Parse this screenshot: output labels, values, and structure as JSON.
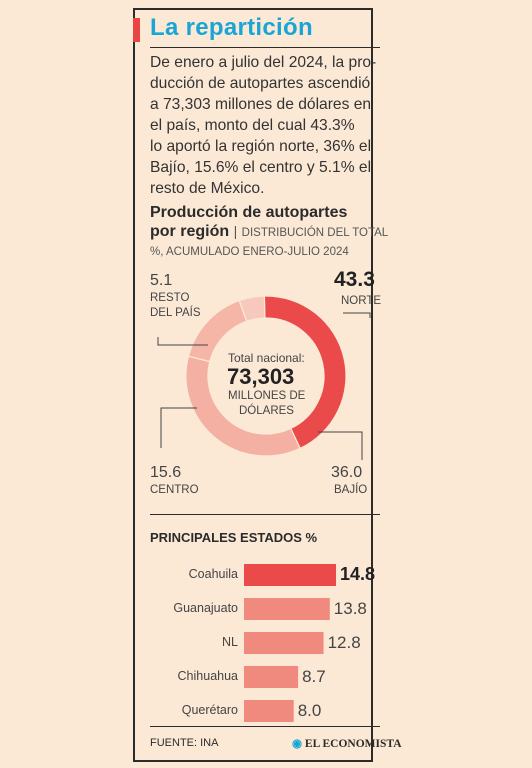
{
  "header": {
    "title": "La repartición",
    "intro_lines": [
      "De enero a julio del 2024, la pro-",
      "ducción de autopartes ascendió",
      "a 73,303 millones de dólares en",
      "el país, monto del cual 43.3%",
      "lo aportó la región norte, 36% el",
      "Bajío, 15.6% el centro y 5.1% el",
      "resto de México."
    ]
  },
  "donut": {
    "subtitle_bold_1": "Producción de autopartes",
    "subtitle_bold_2": "por región",
    "separator": "|",
    "subtitle_light_1": "DISTRIBUCIÓN DEL TOTAL",
    "subtitle_light_2": "%, ACUMULADO ENERO-JULIO 2024",
    "center_caption": "Total nacional:",
    "center_value": "73,303",
    "center_unit_1": "MILLONES DE",
    "center_unit_2": "DÓLARES",
    "labels": {
      "norte": {
        "value": "43.3",
        "name": "NORTE"
      },
      "bajio": {
        "value": "36.0",
        "name": "BAJÍO"
      },
      "centro": {
        "value": "15.6",
        "name": "CENTRO"
      },
      "resto": {
        "value": "5.1",
        "name_1": "RESTO",
        "name_2": "DEL PAÍS"
      }
    }
  },
  "states": {
    "title": "PRINCIPALES ESTADOS %"
  },
  "footer": {
    "source": "FUENTE: INA",
    "brand": "EL ECONOMISTA"
  },
  "colors": {
    "accent": "#e94545",
    "title": "#19a6d6",
    "norte": "#ea4a4a",
    "bajio": "#f4b0a2",
    "centro": "#f5b6a8",
    "resto": "#f7c8bc",
    "bar_top": "#ea4a4a",
    "bar": "#f08a7e"
  },
  "chart_data": [
    {
      "type": "pie",
      "title": "Producción de autopartes por región",
      "subtitle": "DISTRIBUCIÓN DEL TOTAL %, ACUMULADO ENERO-JULIO 2024",
      "categories": [
        "NORTE",
        "BAJÍO",
        "CENTRO",
        "RESTO DEL PAÍS"
      ],
      "values": [
        43.3,
        36.0,
        15.6,
        5.1
      ],
      "total": "73,303"
    },
    {
      "type": "bar",
      "title": "PRINCIPALES ESTADOS %",
      "categories": [
        "Coahuila",
        "Guanajuato",
        "NL",
        "Chihuahua",
        "Querétaro"
      ],
      "values": [
        14.8,
        13.8,
        12.8,
        8.7,
        8.0
      ],
      "value_labels": [
        "14.8",
        "13.8",
        "12.8",
        "8.7",
        "8.0"
      ],
      "xlim": [
        0,
        14.8
      ]
    }
  ]
}
